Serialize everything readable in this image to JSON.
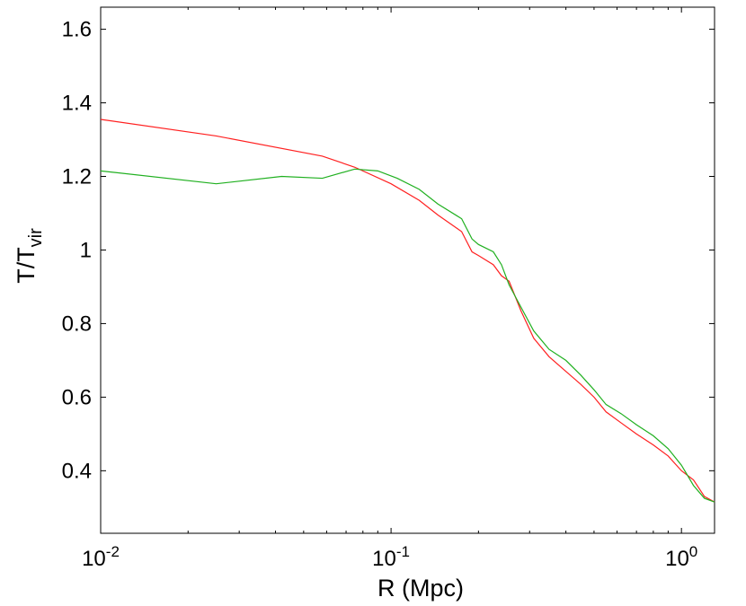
{
  "chart_data": {
    "type": "line",
    "xlabel": "R (Mpc)",
    "ylabel": {
      "main": "T/T",
      "sub": "vir"
    },
    "x_scale": "log",
    "xlim": [
      0.01,
      1.3
    ],
    "ylim": [
      0.23,
      1.66
    ],
    "x_ticks": [
      {
        "value": 0.01,
        "base": "10",
        "exp": "-2"
      },
      {
        "value": 0.1,
        "base": "10",
        "exp": "-1"
      },
      {
        "value": 1,
        "base": "10",
        "exp": "0"
      }
    ],
    "y_ticks": [
      {
        "value": 0.4,
        "label": "0.4"
      },
      {
        "value": 0.6,
        "label": "0.6"
      },
      {
        "value": 0.8,
        "label": "0.8"
      },
      {
        "value": 1.0,
        "label": "1"
      },
      {
        "value": 1.2,
        "label": "1.2"
      },
      {
        "value": 1.4,
        "label": "1.4"
      },
      {
        "value": 1.6,
        "label": "1.6"
      }
    ],
    "grid": false,
    "series": [
      {
        "color": "#ff2020",
        "x": [
          0.01,
          0.025,
          0.058,
          0.075,
          0.1,
          0.125,
          0.145,
          0.175,
          0.19,
          0.2,
          0.225,
          0.24,
          0.255,
          0.28,
          0.31,
          0.35,
          0.4,
          0.45,
          0.5,
          0.55,
          0.62,
          0.7,
          0.8,
          0.9,
          1.0,
          1.1,
          1.2,
          1.3
        ],
        "y": [
          1.355,
          1.31,
          1.255,
          1.225,
          1.18,
          1.135,
          1.095,
          1.05,
          0.995,
          0.985,
          0.96,
          0.93,
          0.915,
          0.835,
          0.76,
          0.71,
          0.67,
          0.635,
          0.6,
          0.56,
          0.53,
          0.5,
          0.47,
          0.44,
          0.4,
          0.375,
          0.33,
          0.315
        ]
      },
      {
        "color": "#20b020",
        "x": [
          0.01,
          0.025,
          0.042,
          0.058,
          0.075,
          0.09,
          0.105,
          0.125,
          0.145,
          0.175,
          0.19,
          0.2,
          0.225,
          0.24,
          0.255,
          0.28,
          0.31,
          0.35,
          0.4,
          0.45,
          0.5,
          0.55,
          0.62,
          0.7,
          0.8,
          0.9,
          1.0,
          1.1,
          1.2,
          1.3
        ],
        "y": [
          1.215,
          1.18,
          1.2,
          1.195,
          1.22,
          1.215,
          1.195,
          1.165,
          1.125,
          1.085,
          1.03,
          1.015,
          0.995,
          0.96,
          0.905,
          0.845,
          0.78,
          0.73,
          0.7,
          0.66,
          0.62,
          0.58,
          0.555,
          0.525,
          0.495,
          0.46,
          0.415,
          0.36,
          0.325,
          0.315
        ]
      }
    ]
  }
}
